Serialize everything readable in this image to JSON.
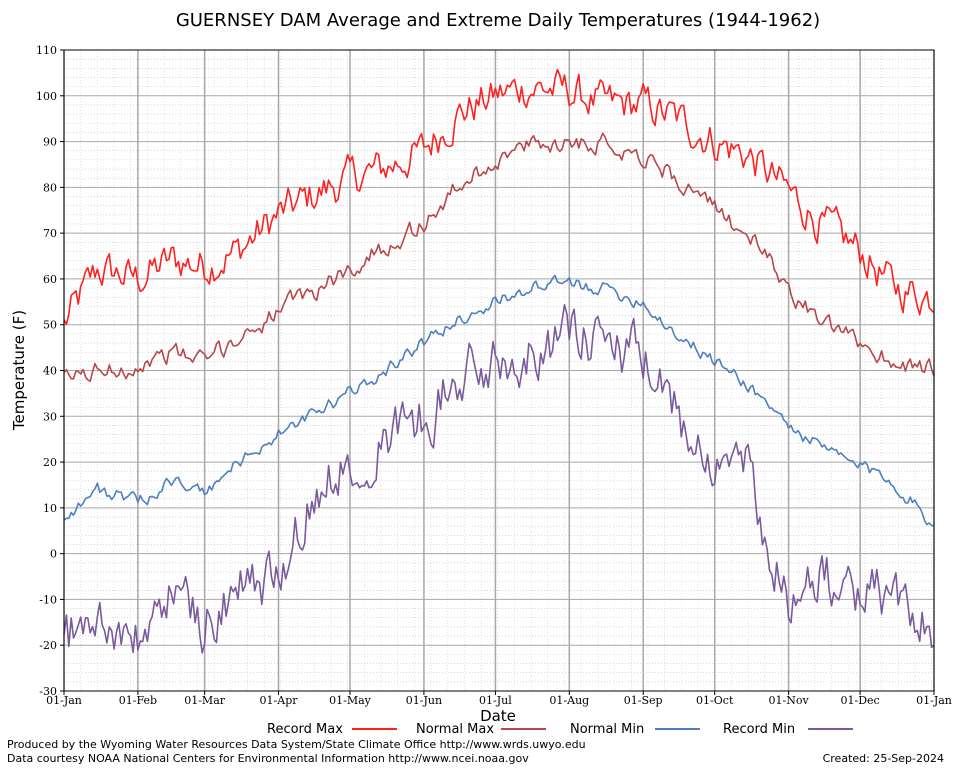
{
  "chart_data": {
    "type": "line",
    "title": "GUERNSEY DAM Average and Extreme Daily Temperatures (1944-1962)",
    "xlabel": "Date",
    "ylabel": "Temperature (F)",
    "ylim": [
      -30,
      110
    ],
    "yticks": [
      -30,
      -20,
      -10,
      0,
      10,
      20,
      30,
      40,
      50,
      60,
      70,
      80,
      90,
      100,
      110
    ],
    "xlim_days": [
      1,
      366
    ],
    "xticks": [
      {
        "label": "01-Jan",
        "day": 1
      },
      {
        "label": "01-Feb",
        "day": 32
      },
      {
        "label": "01-Mar",
        "day": 60
      },
      {
        "label": "01-Apr",
        "day": 91
      },
      {
        "label": "01-May",
        "day": 121
      },
      {
        "label": "01-Jun",
        "day": 152
      },
      {
        "label": "01-Jul",
        "day": 182
      },
      {
        "label": "01-Aug",
        "day": 213
      },
      {
        "label": "01-Sep",
        "day": 244
      },
      {
        "label": "01-Oct",
        "day": 274
      },
      {
        "label": "01-Nov",
        "day": 305
      },
      {
        "label": "01-Dec",
        "day": 335
      },
      {
        "label": "01-Jan",
        "day": 366
      }
    ],
    "grid": true,
    "legend_position": "bottom",
    "series": [
      {
        "name": "Record Max",
        "color": "#ff2020",
        "days": [
          1,
          15,
          32,
          46,
          60,
          74,
          91,
          105,
          121,
          135,
          152,
          166,
          182,
          196,
          213,
          227,
          244,
          258,
          274,
          288,
          305,
          319,
          335,
          349,
          366
        ],
        "values": [
          50,
          62,
          60,
          64,
          63,
          66,
          74,
          78,
          82,
          84,
          88,
          96,
          100,
          102,
          101,
          98,
          98,
          95,
          90,
          87,
          79,
          72,
          66,
          58,
          56
        ]
      },
      {
        "name": "Normal Max",
        "color": "#b8474a",
        "days": [
          1,
          15,
          32,
          46,
          60,
          74,
          91,
          105,
          121,
          135,
          152,
          166,
          182,
          196,
          213,
          227,
          244,
          258,
          274,
          288,
          305,
          319,
          335,
          349,
          366
        ],
        "values": [
          38,
          40,
          41,
          44,
          42,
          47,
          53,
          57,
          62,
          67,
          72,
          80,
          86,
          89,
          90,
          90,
          87,
          82,
          75,
          70,
          58,
          50,
          46,
          42,
          40
        ]
      },
      {
        "name": "Normal Min",
        "color": "#4f7fbf",
        "days": [
          1,
          15,
          32,
          46,
          60,
          74,
          91,
          105,
          121,
          135,
          152,
          166,
          182,
          196,
          213,
          227,
          244,
          258,
          274,
          288,
          305,
          319,
          335,
          349,
          366
        ],
        "values": [
          8,
          14,
          11,
          16,
          13,
          20,
          26,
          30,
          35,
          40,
          46,
          51,
          55,
          58,
          59,
          58,
          55,
          48,
          42,
          37,
          28,
          23,
          19,
          16,
          6
        ]
      },
      {
        "name": "Record Min",
        "color": "#7a5a9e",
        "days": [
          1,
          15,
          32,
          46,
          60,
          74,
          91,
          105,
          121,
          135,
          152,
          166,
          182,
          196,
          213,
          227,
          244,
          258,
          274,
          288,
          305,
          319,
          335,
          349,
          366
        ],
        "values": [
          -18,
          -14,
          -20,
          -8,
          -15,
          -8,
          -5,
          12,
          22,
          25,
          30,
          38,
          42,
          45,
          48,
          46,
          42,
          30,
          22,
          18,
          -10,
          -6,
          -8,
          -10,
          -15
        ]
      }
    ]
  },
  "footer": {
    "line1": "Produced by the Wyoming Water Resources Data System/State Climate Office http://www.wrds.uwyo.edu",
    "line2": "Data courtesy NOAA National Centers for Environmental Information http://www.ncei.noaa.gov",
    "created": "Created:  25-Sep-2024"
  }
}
